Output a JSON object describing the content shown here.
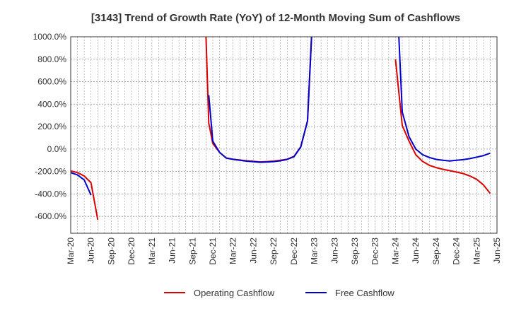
{
  "chart_data": {
    "type": "line",
    "title": "[3143]  Trend of Growth Rate (YoY) of 12-Month Moving Sum of Cashflows",
    "xlabel": "",
    "ylabel": "",
    "ylim": [
      -750,
      1000
    ],
    "y_ticks": [
      1000,
      800,
      600,
      400,
      200,
      0,
      -200,
      -400,
      -600
    ],
    "y_tick_labels": [
      "1000.0%",
      "800.0%",
      "600.0%",
      "400.0%",
      "200.0%",
      "0.0%",
      "-200.0%",
      "-400.0%",
      "-600.0%"
    ],
    "x_tick_labels": [
      "Mar-20",
      "Jun-20",
      "Sep-20",
      "Dec-20",
      "Mar-21",
      "Jun-21",
      "Sep-21",
      "Dec-21",
      "Mar-22",
      "Jun-22",
      "Sep-22",
      "Dec-22",
      "Mar-23",
      "Jun-23",
      "Sep-23",
      "Dec-23",
      "Mar-24",
      "Jun-24",
      "Sep-24",
      "Dec-24",
      "Mar-25",
      "Jun-25"
    ],
    "x_range_months": [
      0,
      63
    ],
    "grid": true,
    "legend_position": "bottom",
    "series": [
      {
        "name": "Operating Cashflow",
        "color": "#dd0000",
        "points": [
          [
            0,
            -195
          ],
          [
            1,
            -210
          ],
          [
            2,
            -240
          ],
          [
            3,
            -300
          ],
          [
            4,
            -630
          ],
          null,
          [
            20,
            1000
          ],
          [
            20.4,
            230
          ],
          [
            21,
            50
          ],
          [
            22,
            -30
          ],
          [
            23,
            -80
          ],
          [
            24,
            -90
          ],
          [
            25,
            -98
          ],
          [
            26,
            -105
          ],
          [
            27,
            -110
          ],
          [
            28,
            -115
          ],
          [
            29,
            -112
          ],
          [
            30,
            -108
          ],
          [
            31,
            -100
          ],
          [
            32,
            -90
          ],
          [
            33,
            -65
          ],
          [
            34,
            20
          ],
          [
            35,
            250
          ],
          [
            35.6,
            1000
          ],
          null,
          [
            48,
            800
          ],
          [
            49,
            210
          ],
          [
            50,
            70
          ],
          [
            51,
            -50
          ],
          [
            52,
            -110
          ],
          [
            53,
            -145
          ],
          [
            54,
            -165
          ],
          [
            55,
            -180
          ],
          [
            56,
            -192
          ],
          [
            57,
            -205
          ],
          [
            58,
            -218
          ],
          [
            59,
            -240
          ],
          [
            60,
            -270
          ],
          [
            61,
            -320
          ],
          [
            62,
            -395
          ]
        ]
      },
      {
        "name": "Free Cashflow",
        "color": "#0000cc",
        "points": [
          [
            0,
            -210
          ],
          [
            1,
            -230
          ],
          [
            2,
            -275
          ],
          [
            3,
            -410
          ],
          null,
          [
            20.4,
            480
          ],
          [
            21,
            70
          ],
          [
            22,
            -30
          ],
          [
            23,
            -80
          ],
          [
            24,
            -92
          ],
          [
            25,
            -100
          ],
          [
            26,
            -108
          ],
          [
            27,
            -113
          ],
          [
            28,
            -118
          ],
          [
            29,
            -116
          ],
          [
            30,
            -112
          ],
          [
            31,
            -105
          ],
          [
            32,
            -92
          ],
          [
            33,
            -68
          ],
          [
            34,
            18
          ],
          [
            35,
            250
          ],
          [
            35.6,
            1000
          ],
          null,
          [
            48.5,
            1000
          ],
          [
            49,
            330
          ],
          [
            50,
            110
          ],
          [
            51,
            0
          ],
          [
            52,
            -50
          ],
          [
            53,
            -75
          ],
          [
            54,
            -92
          ],
          [
            55,
            -100
          ],
          [
            56,
            -106
          ],
          [
            57,
            -100
          ],
          [
            58,
            -95
          ],
          [
            59,
            -85
          ],
          [
            60,
            -72
          ],
          [
            61,
            -58
          ],
          [
            62,
            -37
          ]
        ]
      }
    ]
  }
}
